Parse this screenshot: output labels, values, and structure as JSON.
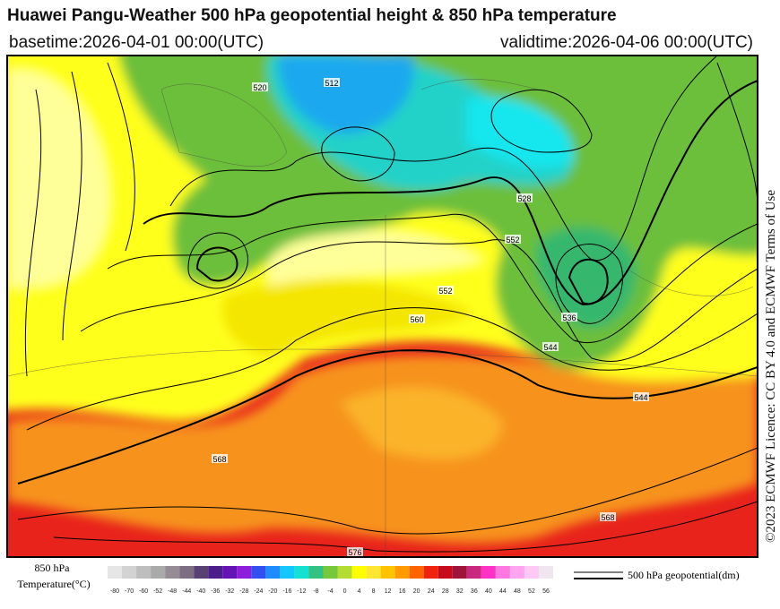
{
  "header": {
    "title": "Huawei Pangu-Weather 500 hPa geopotential height & 850 hPa temperature",
    "basetime": "basetime:2026-04-01 00:00(UTC)",
    "validtime": "validtime:2026-04-06 00:00(UTC)"
  },
  "license": "©2023 ECMWF Licence: CC BY 4.0 and ECMWF Terms of Use",
  "contour_labels": [
    "512",
    "520",
    "528",
    "536",
    "544",
    "552",
    "560",
    "568",
    "576",
    "568",
    "544",
    "552"
  ],
  "legend": {
    "temperature_title_1": "850 hPa",
    "temperature_title_2": "Temperature(°C)",
    "geopotential": "500 hPa geopotential(dm)"
  },
  "colorbar": {
    "ticks": [
      -80,
      -70,
      -60,
      -52,
      -48,
      -44,
      -40,
      -36,
      -32,
      -28,
      -24,
      -20,
      -16,
      -12,
      -8,
      -4,
      0,
      4,
      8,
      12,
      16,
      20,
      24,
      28,
      32,
      36,
      40,
      44,
      48,
      52,
      56
    ],
    "colors": [
      "#e6e6e6",
      "#d2d2d2",
      "#bebebe",
      "#aaaaaa",
      "#968c96",
      "#7d6e82",
      "#5a4173",
      "#4b1e8c",
      "#6414b4",
      "#8c1edc",
      "#3250f0",
      "#1e8cff",
      "#14c8ff",
      "#14e1d2",
      "#32c382",
      "#78c83c",
      "#b4dc32",
      "#ffff00",
      "#ffe632",
      "#ffc300",
      "#ff9b00",
      "#ff6400",
      "#f0230f",
      "#c80a1e",
      "#a0143c",
      "#c8287d",
      "#ff32c8",
      "#ff78e1",
      "#ffa5f0",
      "#ffc8f5",
      "#f0e6f0"
    ]
  }
}
